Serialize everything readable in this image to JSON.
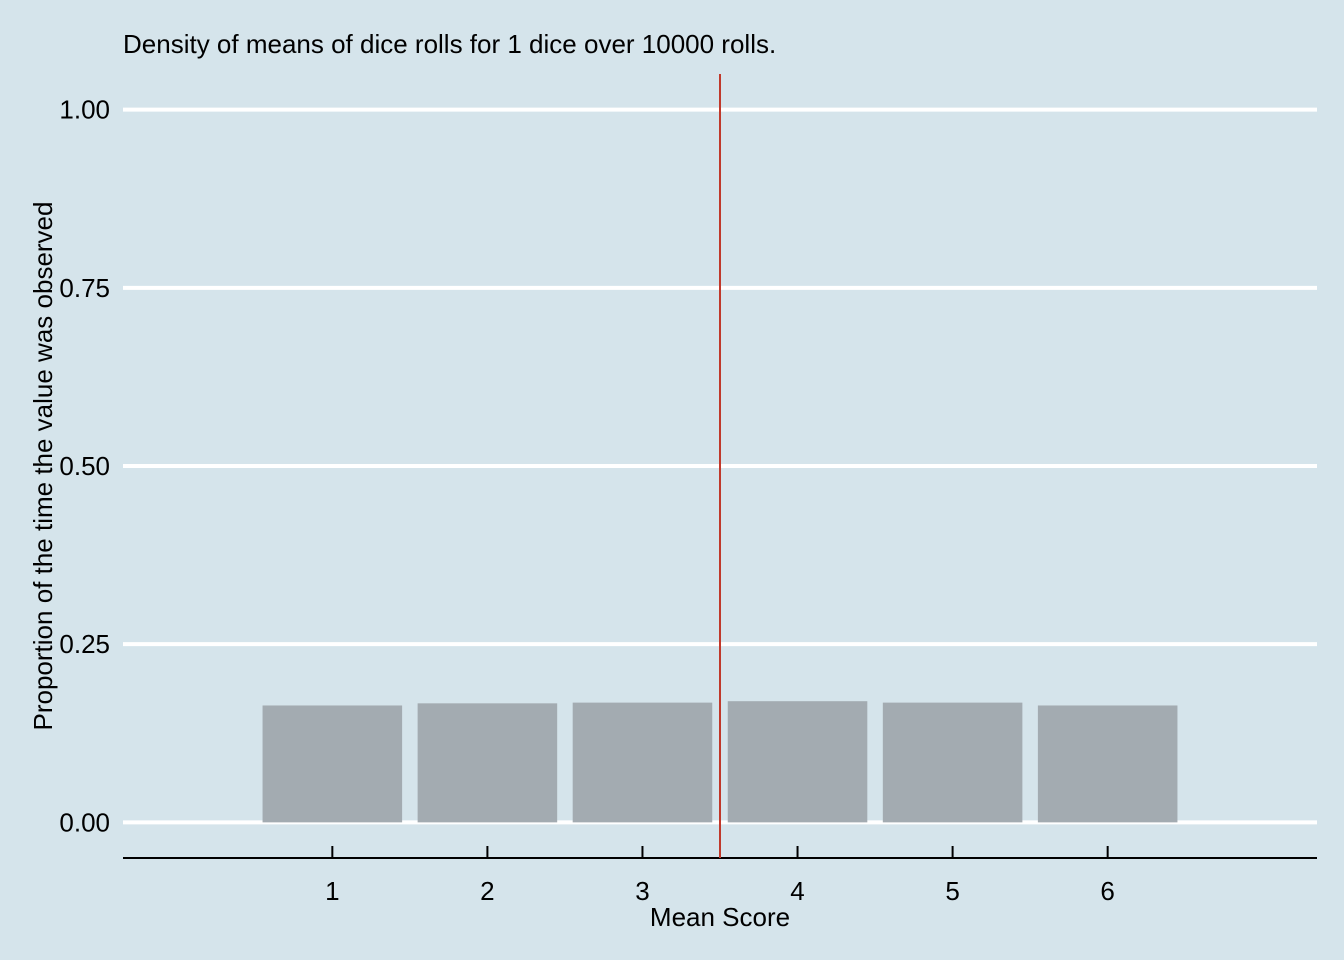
{
  "chart_data": {
    "type": "bar",
    "title": "Density of means of dice rolls for 1 dice over 10000 rolls.",
    "xlabel": "Mean Score",
    "ylabel": "Proportion of the time the value was observed",
    "categories": [
      "1",
      "2",
      "3",
      "4",
      "5",
      "6"
    ],
    "x": [
      1,
      2,
      3,
      4,
      5,
      6
    ],
    "values": [
      0.164,
      0.167,
      0.168,
      0.17,
      0.168,
      0.164
    ],
    "xlim": [
      -0.35,
      7.35
    ],
    "ylim": [
      -0.05,
      1.05
    ],
    "y_ticks": [
      0,
      0.25,
      0.5,
      0.75,
      1
    ],
    "y_tick_labels": [
      "0.00",
      "0.25",
      "0.50",
      "0.75",
      "1.00"
    ],
    "bar_width": 0.9,
    "reference_line_x": 3.5,
    "grid": "horizontal",
    "colors": {
      "background": "#d5e4eb",
      "bar": "#a3abb1",
      "grid": "#ffffff",
      "reference_line": "#c0392b",
      "axis": "#000000"
    }
  }
}
